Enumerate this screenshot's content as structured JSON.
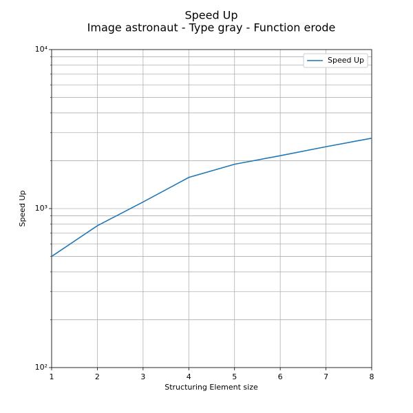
{
  "chart_data": {
    "type": "line",
    "title": "Speed Up",
    "subtitle": "Image astronaut - Type gray - Function erode",
    "x_label": "Structuring Element size",
    "y_label": "Speed Up",
    "x": [
      1,
      2,
      3,
      4,
      5,
      6,
      7,
      8
    ],
    "series": [
      {
        "name": "Speed Up",
        "color": "#1f77b4",
        "values": [
          500,
          780,
          1100,
          1570,
          1900,
          2150,
          2450,
          2770
        ]
      }
    ],
    "xlim": [
      1,
      8
    ],
    "xticks": [
      1,
      2,
      3,
      4,
      5,
      6,
      7,
      8
    ],
    "ylim": [
      100,
      10000
    ],
    "log_y": true,
    "yticks": [
      {
        "value": 100,
        "label": "10²"
      },
      {
        "value": 1000,
        "label": "10³"
      },
      {
        "value": 10000,
        "label": "10⁴"
      }
    ],
    "minor_yticks": [
      200,
      300,
      400,
      500,
      600,
      700,
      800,
      900,
      2000,
      3000,
      4000,
      5000,
      6000,
      7000,
      8000,
      9000
    ],
    "grid": true,
    "legend": "upper right"
  }
}
